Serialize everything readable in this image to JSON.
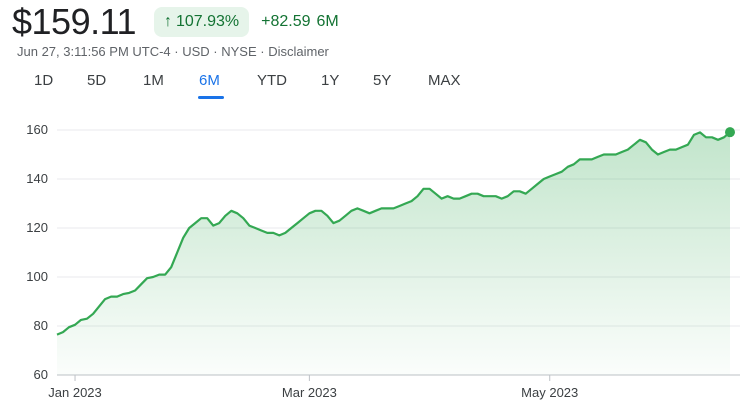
{
  "quote": {
    "price": "$159.11",
    "change_pct": "107.93%",
    "change_abs": "+82.59",
    "period": "6M"
  },
  "meta": {
    "timestamp": "Jun 27, 3:11:56 PM UTC-4",
    "currency": "USD",
    "exchange": "NYSE",
    "disclaimer": "Disclaimer"
  },
  "tabs": [
    "1D",
    "5D",
    "1M",
    "6M",
    "YTD",
    "1Y",
    "5Y",
    "MAX"
  ],
  "active_tab": "6M",
  "colors": {
    "line": "#34a853",
    "fill": "#34a853",
    "up": "#137333",
    "accent": "#1a73e8"
  },
  "chart_data": {
    "type": "area",
    "title": "",
    "xlabel": "",
    "ylabel": "",
    "ylim": [
      60,
      160
    ],
    "yticks": [
      60,
      80,
      100,
      120,
      140,
      160
    ],
    "x_ticks": [
      {
        "label": "Jan 2023",
        "index": 3
      },
      {
        "label": "Mar 2023",
        "index": 42
      },
      {
        "label": "May 2023",
        "index": 82
      }
    ],
    "grid": true,
    "series": [
      {
        "values": [
          76.5,
          77.5,
          79.5,
          80.5,
          82.5,
          83,
          85,
          88,
          91,
          92,
          92,
          93,
          93.5,
          94.5,
          97,
          99.5,
          100,
          101,
          101,
          104,
          110,
          116,
          120,
          122,
          124,
          124,
          121,
          122,
          125,
          127,
          126,
          124,
          121,
          120,
          119,
          118,
          118,
          117,
          118,
          120,
          122,
          124,
          126,
          127,
          127,
          125,
          122,
          123,
          125,
          127,
          128,
          127,
          126,
          127,
          128,
          128,
          128,
          129,
          130,
          131,
          133,
          136,
          136,
          134,
          132,
          133,
          132,
          132,
          133,
          134,
          134,
          133,
          133,
          133,
          132,
          133,
          135,
          135,
          134,
          136,
          138,
          140,
          141,
          142,
          143,
          145,
          146,
          148,
          148,
          148,
          149,
          150,
          150,
          150,
          151,
          152,
          154,
          156,
          155,
          152,
          150,
          151,
          152,
          152,
          153,
          154,
          158,
          159,
          157,
          157,
          156,
          157,
          159.11
        ]
      }
    ]
  }
}
